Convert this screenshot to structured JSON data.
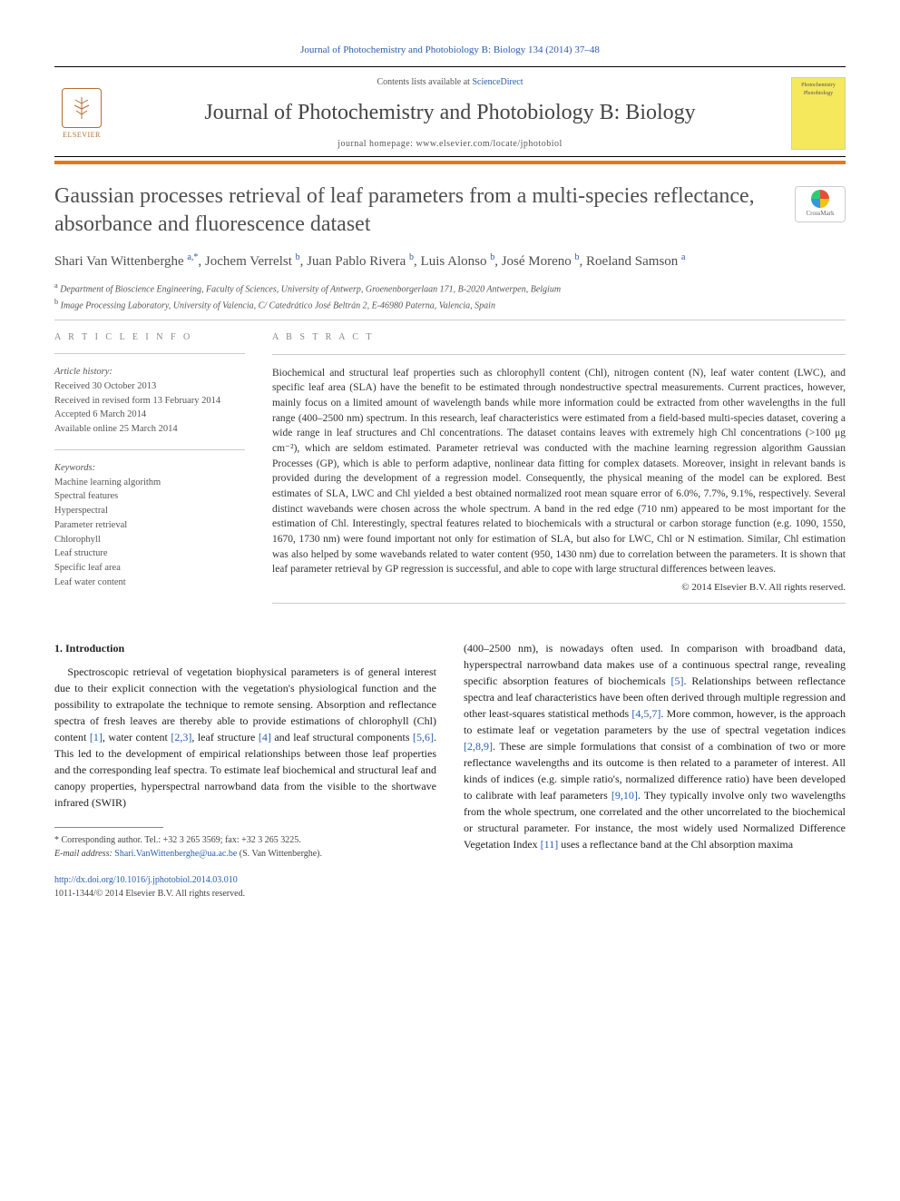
{
  "topcite": "Journal of Photochemistry and Photobiology B: Biology 134 (2014) 37–48",
  "header": {
    "contents_prefix": "Contents lists available at ",
    "contents_link": "ScienceDirect",
    "journal_name": "Journal of Photochemistry and Photobiology B: Biology",
    "homepage_prefix": "journal homepage: ",
    "homepage_url": "www.elsevier.com/locate/jphotobiol",
    "elsevier_label": "ELSEVIER",
    "cover_label_top": "Photochemistry",
    "cover_label_bot": "Photobiology",
    "crossmark_label": "CrossMark"
  },
  "title": "Gaussian processes retrieval of leaf parameters from a multi-species reflectance, absorbance and fluorescence dataset",
  "authors_html_parts": [
    {
      "name": "Shari Van Wittenberghe",
      "sup": "a,*"
    },
    {
      "name": "Jochem Verrelst",
      "sup": "b"
    },
    {
      "name": "Juan Pablo Rivera",
      "sup": "b"
    },
    {
      "name": "Luis Alonso",
      "sup": "b"
    },
    {
      "name": "José Moreno",
      "sup": "b"
    },
    {
      "name": "Roeland Samson",
      "sup": "a"
    }
  ],
  "affiliations": {
    "a": "Department of Bioscience Engineering, Faculty of Sciences, University of Antwerp, Groenenborgerlaan 171, B-2020 Antwerpen, Belgium",
    "b": "Image Processing Laboratory, University of Valencia, C/ Catedrático José Beltrán 2, E-46980 Paterna, Valencia, Spain"
  },
  "info": {
    "heading": "A R T I C L E   I N F O",
    "history_label": "Article history:",
    "history": [
      "Received 30 October 2013",
      "Received in revised form 13 February 2014",
      "Accepted 6 March 2014",
      "Available online 25 March 2014"
    ],
    "keywords_label": "Keywords:",
    "keywords": [
      "Machine learning algorithm",
      "Spectral features",
      "Hyperspectral",
      "Parameter retrieval",
      "Chlorophyll",
      "Leaf structure",
      "Specific leaf area",
      "Leaf water content"
    ]
  },
  "abstract": {
    "heading": "A B S T R A C T",
    "text": "Biochemical and structural leaf properties such as chlorophyll content (Chl), nitrogen content (N), leaf water content (LWC), and specific leaf area (SLA) have the benefit to be estimated through nondestructive spectral measurements. Current practices, however, mainly focus on a limited amount of wavelength bands while more information could be extracted from other wavelengths in the full range (400–2500 nm) spectrum. In this research, leaf characteristics were estimated from a field-based multi-species dataset, covering a wide range in leaf structures and Chl concentrations. The dataset contains leaves with extremely high Chl concentrations (>100 μg cm⁻²), which are seldom estimated. Parameter retrieval was conducted with the machine learning regression algorithm Gaussian Processes (GP), which is able to perform adaptive, nonlinear data fitting for complex datasets. Moreover, insight in relevant bands is provided during the development of a regression model. Consequently, the physical meaning of the model can be explored. Best estimates of SLA, LWC and Chl yielded a best obtained normalized root mean square error of 6.0%, 7.7%, 9.1%, respectively. Several distinct wavebands were chosen across the whole spectrum. A band in the red edge (710 nm) appeared to be most important for the estimation of Chl. Interestingly, spectral features related to biochemicals with a structural or carbon storage function (e.g. 1090, 1550, 1670, 1730 nm) were found important not only for estimation of SLA, but also for LWC, Chl or N estimation. Similar, Chl estimation was also helped by some wavebands related to water content (950, 1430 nm) due to correlation between the parameters. It is shown that leaf parameter retrieval by GP regression is successful, and able to cope with large structural differences between leaves.",
    "copyright": "© 2014 Elsevier B.V. All rights reserved."
  },
  "body": {
    "section_heading": "1. Introduction",
    "col1_text": "Spectroscopic retrieval of vegetation biophysical parameters is of general interest due to their explicit connection with the vegetation's physiological function and the possibility to extrapolate the technique to remote sensing. Absorption and reflectance spectra of fresh leaves are thereby able to provide estimations of chlorophyll (Chl) content [1], water content [2,3], leaf structure [4] and leaf structural components [5,6]. This led to the development of empirical relationships between those leaf properties and the corresponding leaf spectra. To estimate leaf biochemical and structural leaf and canopy properties, hyperspectral narrowband data from the visible to the shortwave infrared (SWIR)",
    "col2_text": "(400–2500 nm), is nowadays often used. In comparison with broadband data, hyperspectral narrowband data makes use of a continuous spectral range, revealing specific absorption features of biochemicals [5]. Relationships between reflectance spectra and leaf characteristics have been often derived through multiple regression and other least-squares statistical methods [4,5,7]. More common, however, is the approach to estimate leaf or vegetation parameters by the use of spectral vegetation indices [2,8,9]. These are simple formulations that consist of a combination of two or more reflectance wavelengths and its outcome is then related to a parameter of interest. All kinds of indices (e.g. simple ratio's, normalized difference ratio) have been developed to calibrate with leaf parameters [9,10]. They typically involve only two wavelengths from the whole spectrum, one correlated and the other uncorrelated to the biochemical or structural parameter. For instance, the most widely used Normalized Difference Vegetation Index [11] uses a reflectance band at the Chl absorption maxima"
  },
  "footnote": {
    "corr_label": "* Corresponding author. Tel.: +32 3 265 3569; fax: +32 3 265 3225.",
    "email_label": "E-mail address: ",
    "email": "Shari.VanWittenberghe@ua.ac.be",
    "email_suffix": " (S. Van Wittenberghe)."
  },
  "footer": {
    "doi": "http://dx.doi.org/10.1016/j.jphotobiol.2014.03.010",
    "issn_line": "1011-1344/© 2014 Elsevier B.V. All rights reserved."
  },
  "colors": {
    "link": "#2a5db0",
    "orange_rule": "#e67817",
    "cover_bg": "#f5e85c"
  }
}
